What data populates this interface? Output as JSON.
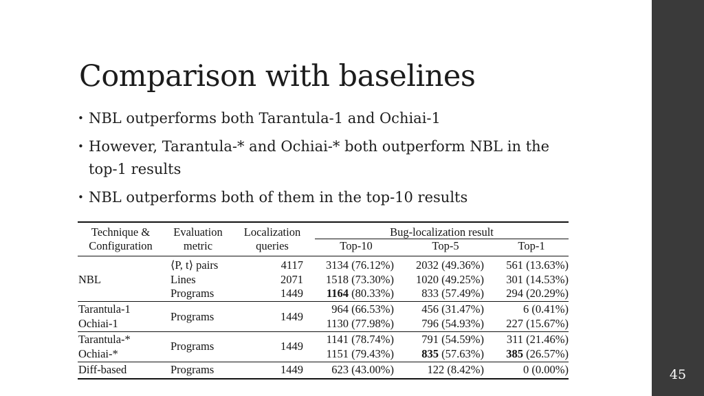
{
  "slide": {
    "title": "Comparison with baselines",
    "bullets": [
      "NBL outperforms both Tarantula-1 and Ochiai-1",
      "However, Tarantula-* and Ochiai-* both outperform NBL in the top-1 results",
      "NBL outperforms both of them in the top-10 results"
    ],
    "page_number": "45"
  },
  "table": {
    "headers": {
      "technique_line1": "Technique &",
      "technique_line2": "Configuration",
      "eval_line1": "Evaluation",
      "eval_line2": "metric",
      "loc_line1": "Localization",
      "loc_line2": "queries",
      "result_group": "Bug-localization result",
      "top10": "Top-10",
      "top5": "Top-5",
      "top1": "Top-1"
    },
    "rows": {
      "nbl_label": "NBL",
      "nbl_metric1": "⟨P, t⟩ pairs",
      "nbl_q1": "4117",
      "nbl_t10_1": "3134 (76.12%)",
      "nbl_t5_1": "2032 (49.36%)",
      "nbl_t1_1": "561 (13.63%)",
      "nbl_metric2": "Lines",
      "nbl_q2": "2071",
      "nbl_t10_2": "1518 (73.30%)",
      "nbl_t5_2": "1020 (49.25%)",
      "nbl_t1_2": "301 (14.53%)",
      "nbl_metric3": "Programs",
      "nbl_q3": "1449",
      "nbl_t10_3_bold": "1164",
      "nbl_t10_3_rest": " (80.33%)",
      "nbl_t5_3": "833 (57.49%)",
      "nbl_t1_3": "294 (20.29%)",
      "tar1_label": "Tarantula-1",
      "och1_label": "Ochiai-1",
      "g1_metric": "Programs",
      "g1_q": "1449",
      "tar1_t10": "964 (66.53%)",
      "tar1_t5": "456 (31.47%)",
      "tar1_t1": "6 (0.41%)",
      "och1_t10": "1130 (77.98%)",
      "och1_t5": "796 (54.93%)",
      "och1_t1": "227 (15.67%)",
      "tars_label": "Tarantula-*",
      "ochs_label": "Ochiai-*",
      "g2_metric": "Programs",
      "g2_q": "1449",
      "tars_t10": "1141 (78.74%)",
      "tars_t5": "791 (54.59%)",
      "tars_t1": "311 (21.46%)",
      "ochs_t10": "1151 (79.43%)",
      "ochs_t5_bold": "835",
      "ochs_t5_rest": " (57.63%)",
      "ochs_t1_bold": "385",
      "ochs_t1_rest": " (26.57%)",
      "diff_label": "Diff-based",
      "diff_metric": "Programs",
      "diff_q": "1449",
      "diff_t10": "623 (43.00%)",
      "diff_t5": "122 (8.42%)",
      "diff_t1": "0 (0.00%)"
    }
  }
}
